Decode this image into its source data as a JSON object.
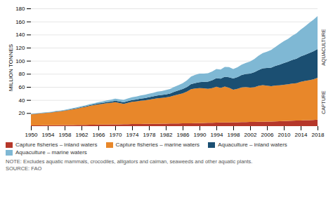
{
  "chart_data": {
    "type": "area",
    "stacked": true,
    "ylabel": "MILLION TONNES",
    "x": [
      1950,
      1951,
      1952,
      1953,
      1954,
      1955,
      1956,
      1957,
      1958,
      1959,
      1960,
      1961,
      1962,
      1963,
      1964,
      1965,
      1966,
      1967,
      1968,
      1969,
      1970,
      1971,
      1972,
      1973,
      1974,
      1975,
      1976,
      1977,
      1978,
      1979,
      1980,
      1981,
      1982,
      1983,
      1984,
      1985,
      1986,
      1987,
      1988,
      1989,
      1990,
      1991,
      1992,
      1993,
      1994,
      1995,
      1996,
      1997,
      1998,
      1999,
      2000,
      2001,
      2002,
      2003,
      2004,
      2005,
      2006,
      2007,
      2008,
      2009,
      2010,
      2011,
      2012,
      2013,
      2014,
      2015,
      2016,
      2017,
      2018
    ],
    "xlim": [
      1950,
      2018
    ],
    "xticks": [
      1950,
      1954,
      1958,
      1962,
      1966,
      1970,
      1974,
      1978,
      1982,
      1986,
      1990,
      1994,
      1998,
      2002,
      2006,
      2010,
      2014,
      2018
    ],
    "ylim": [
      0,
      180
    ],
    "yticks": [
      20,
      40,
      60,
      80,
      100,
      120,
      140,
      160,
      180
    ],
    "grid": true,
    "legend": "bottom",
    "series": [
      {
        "name": "Capture fisheries – inland waters",
        "color": "#b5372a",
        "values": [
          1.0,
          1.1,
          1.2,
          1.3,
          1.3,
          1.4,
          1.4,
          1.5,
          1.5,
          1.6,
          1.7,
          1.8,
          1.9,
          2.0,
          2.1,
          2.2,
          2.3,
          2.4,
          2.5,
          2.6,
          2.7,
          2.8,
          2.9,
          3.0,
          3.1,
          3.2,
          3.3,
          3.4,
          3.5,
          3.5,
          3.6,
          3.7,
          3.8,
          3.9,
          4.0,
          4.1,
          4.2,
          4.3,
          4.4,
          4.5,
          4.6,
          4.8,
          5.0,
          5.2,
          5.4,
          5.5,
          5.6,
          5.7,
          5.8,
          6.0,
          6.1,
          6.2,
          6.3,
          6.5,
          6.7,
          6.8,
          6.9,
          7.0,
          7.2,
          7.5,
          7.8,
          8.0,
          8.2,
          8.5,
          8.7,
          9.0,
          9.2,
          9.5,
          9.8
        ]
      },
      {
        "name": "Capture fisheries – marine waters",
        "color": "#e8872a",
        "values": [
          17.0,
          17.5,
          18.0,
          18.5,
          19.0,
          19.5,
          20.5,
          21.0,
          22.0,
          23.0,
          24.0,
          25.0,
          26.5,
          27.5,
          29.0,
          30.0,
          31.0,
          31.5,
          32.5,
          33.0,
          34.0,
          32.5,
          31.0,
          32.5,
          34.0,
          34.5,
          35.5,
          36.0,
          37.0,
          38.0,
          39.0,
          39.5,
          40.0,
          41.0,
          43.0,
          44.5,
          46.0,
          48.5,
          52.0,
          53.0,
          53.5,
          53.0,
          52.0,
          53.0,
          55.0,
          53.0,
          55.0,
          53.0,
          50.0,
          51.0,
          53.0,
          53.5,
          52.5,
          53.0,
          55.0,
          56.0,
          55.0,
          54.0,
          55.0,
          55.0,
          55.5,
          56.0,
          57.0,
          57.0,
          59.0,
          60.0,
          61.0,
          62.0,
          64.0
        ]
      },
      {
        "name": "Aquaculture – inland waters",
        "color": "#1b4f72",
        "values": [
          0.3,
          0.3,
          0.3,
          0.4,
          0.4,
          0.4,
          0.5,
          0.5,
          0.5,
          0.6,
          0.7,
          0.8,
          0.9,
          1.0,
          1.1,
          1.2,
          1.4,
          1.6,
          1.8,
          2.0,
          2.2,
          2.4,
          2.6,
          2.7,
          2.9,
          3.1,
          3.3,
          3.5,
          3.8,
          4.0,
          4.3,
          4.5,
          4.8,
          5.0,
          5.5,
          6.0,
          6.5,
          7.0,
          7.8,
          8.5,
          9.2,
          10.0,
          11.0,
          12.0,
          13.0,
          14.0,
          15.0,
          16.0,
          17.0,
          18.0,
          19.0,
          20.0,
          21.5,
          23.0,
          24.0,
          25.5,
          27.0,
          28.5,
          30.0,
          31.5,
          33.0,
          34.5,
          36.0,
          37.5,
          39.0,
          40.0,
          41.5,
          43.0,
          44.0
        ]
      },
      {
        "name": "Aquaculture – marine waters",
        "color": "#7fb8d4",
        "values": [
          0.5,
          0.5,
          0.6,
          0.6,
          0.7,
          0.7,
          0.8,
          0.8,
          0.9,
          1.0,
          1.1,
          1.2,
          1.3,
          1.4,
          1.6,
          1.8,
          2.0,
          2.2,
          2.5,
          2.8,
          3.1,
          3.4,
          3.7,
          4.0,
          4.3,
          4.5,
          4.8,
          5.0,
          5.2,
          5.5,
          5.8,
          6.0,
          6.5,
          7.0,
          7.5,
          8.0,
          9.0,
          10.0,
          11.5,
          12.5,
          13.0,
          12.5,
          13.0,
          13.5,
          14.0,
          14.0,
          15.0,
          15.5,
          14.5,
          15.0,
          16.0,
          17.0,
          18.5,
          20.0,
          22.0,
          23.5,
          25.0,
          27.0,
          29.0,
          31.5,
          33.5,
          35.0,
          37.0,
          39.0,
          41.0,
          43.5,
          46.0,
          48.0,
          50.5
        ]
      }
    ],
    "annotations": [
      "AQUACULTURE",
      "CAPTURE"
    ],
    "notes": [
      "NOTE: Excludes aquatic mammals, crocodiles, alligators and caiman, seaweeds and other aquatic plants.",
      "SOURCE: FAO"
    ]
  }
}
